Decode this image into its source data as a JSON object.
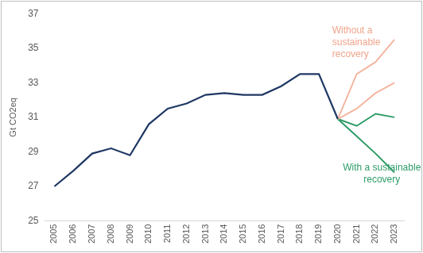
{
  "chart_data": {
    "type": "line",
    "y_label": "Gt CO2eq",
    "categories": [
      "2005",
      "2006",
      "2007",
      "2008",
      "2009",
      "2010",
      "2011",
      "2012",
      "2013",
      "2014",
      "2015",
      "2016",
      "2017",
      "2018",
      "2019",
      "2020",
      "2021",
      "2022",
      "2023"
    ],
    "series": [
      {
        "color": "#1f3864",
        "values": [
          27.0,
          27.9,
          28.9,
          29.2,
          28.8,
          30.6,
          31.5,
          31.8,
          32.3,
          32.4,
          32.3,
          32.3,
          32.8,
          33.5,
          33.5,
          30.9,
          null,
          null,
          null
        ]
      },
      {
        "color": "#f4b6a2",
        "values": [
          null,
          null,
          null,
          null,
          null,
          null,
          null,
          null,
          null,
          null,
          null,
          null,
          null,
          null,
          null,
          30.9,
          33.5,
          34.2,
          35.5
        ]
      },
      {
        "color": "#f4b6a2",
        "values": [
          null,
          null,
          null,
          null,
          null,
          null,
          null,
          null,
          null,
          null,
          null,
          null,
          null,
          null,
          null,
          30.9,
          31.5,
          32.4,
          33.0
        ]
      },
      {
        "color": "#2e9c68",
        "values": [
          null,
          null,
          null,
          null,
          null,
          null,
          null,
          null,
          null,
          null,
          null,
          null,
          null,
          null,
          null,
          30.9,
          30.5,
          31.2,
          31.0
        ]
      },
      {
        "color": "#2e9c68",
        "values": [
          null,
          null,
          null,
          null,
          null,
          null,
          null,
          null,
          null,
          null,
          null,
          null,
          null,
          null,
          null,
          30.9,
          29.9,
          28.9,
          27.8
        ]
      }
    ],
    "annotations": [
      {
        "lines": [
          "Without a",
          "sustainable",
          "recovery"
        ],
        "color": "#f0a48c"
      },
      {
        "lines": [
          "With a sustainable",
          "recovery"
        ],
        "color": "#2e9c68"
      }
    ],
    "ylim": [
      25,
      37
    ],
    "yticks": [
      25,
      27,
      29,
      31,
      33,
      35,
      37
    ],
    "grid": false
  }
}
